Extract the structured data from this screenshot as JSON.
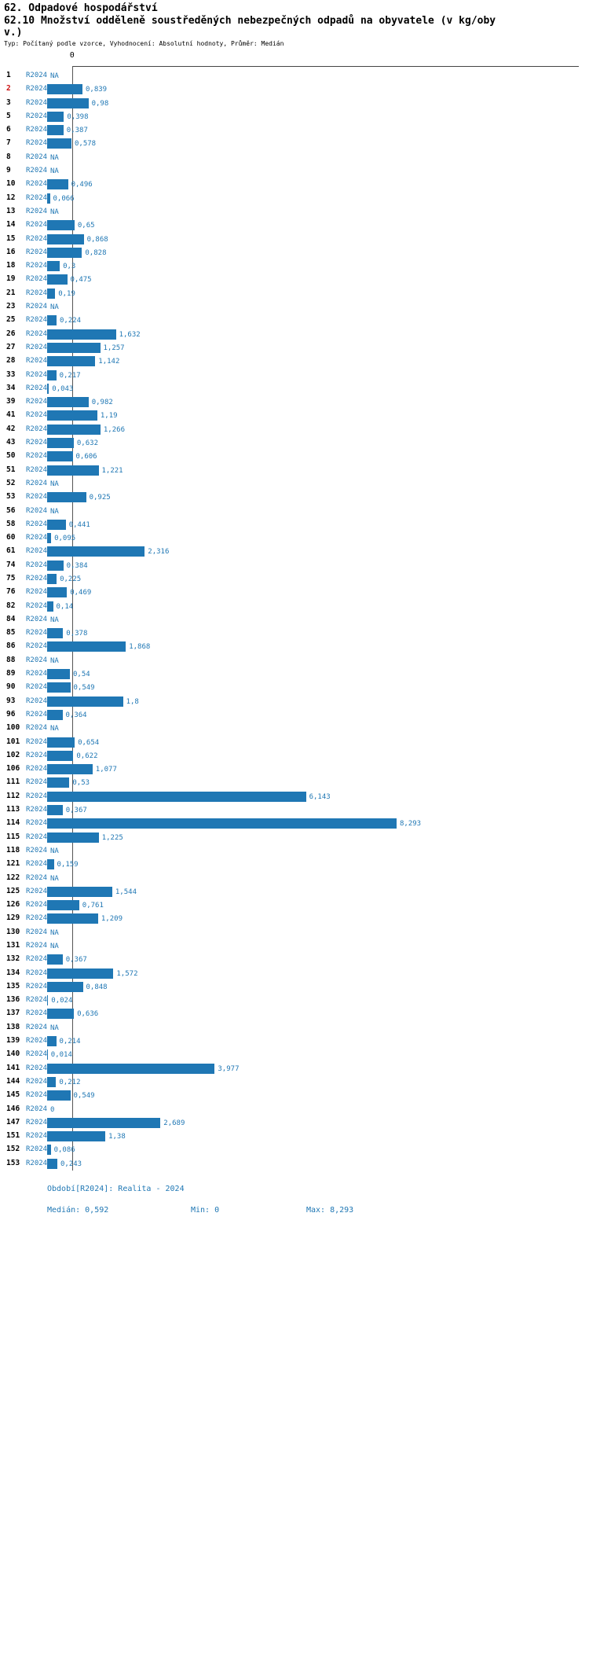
{
  "header": {
    "title": "62. Odpadové hospodářství",
    "subtitle": "62.10 Množství odděleně soustředěných nebezpečných odpadů na obyvatele (v kg/obyv.)",
    "meta": "Typ: Počítaný podle vzorce, Vyhodnocení: Absolutní hodnoty, Průměr: Medián"
  },
  "axis": {
    "zero_label": "0"
  },
  "footer": {
    "period": "Období[R2024]: Realita - 2024",
    "median": "Medián: 0,592",
    "min": "Min: 0",
    "max": "Max: 8,293"
  },
  "colors": {
    "bar_blue": "#1f77b4",
    "text_blue": "#1f77b4",
    "highlight_red": "#cc1111",
    "axis_gray": "#444444"
  },
  "chart_data": {
    "type": "bar",
    "orientation": "horizontal",
    "series_name": "R2024",
    "median": 0.592,
    "min": 0,
    "max": 8.293,
    "xlim": [
      0,
      8.5
    ],
    "highlighted_category": "2",
    "legend_position": "none",
    "grid": false,
    "rows": [
      {
        "n": "1",
        "v": null,
        "d": "NA"
      },
      {
        "n": "2",
        "v": 0.839,
        "d": "0,839",
        "hl": true
      },
      {
        "n": "3",
        "v": 0.98,
        "d": "0,98"
      },
      {
        "n": "5",
        "v": 0.398,
        "d": "0,398"
      },
      {
        "n": "6",
        "v": 0.387,
        "d": "0,387"
      },
      {
        "n": "7",
        "v": 0.578,
        "d": "0,578"
      },
      {
        "n": "8",
        "v": null,
        "d": "NA"
      },
      {
        "n": "9",
        "v": null,
        "d": "NA"
      },
      {
        "n": "10",
        "v": 0.496,
        "d": "0,496"
      },
      {
        "n": "12",
        "v": 0.066,
        "d": "0,066"
      },
      {
        "n": "13",
        "v": null,
        "d": "NA"
      },
      {
        "n": "14",
        "v": 0.65,
        "d": "0,65"
      },
      {
        "n": "15",
        "v": 0.868,
        "d": "0,868"
      },
      {
        "n": "16",
        "v": 0.828,
        "d": "0,828"
      },
      {
        "n": "18",
        "v": 0.3,
        "d": "0,3"
      },
      {
        "n": "19",
        "v": 0.475,
        "d": "0,475"
      },
      {
        "n": "21",
        "v": 0.19,
        "d": "0,19"
      },
      {
        "n": "23",
        "v": null,
        "d": "NA"
      },
      {
        "n": "25",
        "v": 0.224,
        "d": "0,224"
      },
      {
        "n": "26",
        "v": 1.632,
        "d": "1,632"
      },
      {
        "n": "27",
        "v": 1.257,
        "d": "1,257"
      },
      {
        "n": "28",
        "v": 1.142,
        "d": "1,142"
      },
      {
        "n": "33",
        "v": 0.217,
        "d": "0,217"
      },
      {
        "n": "34",
        "v": 0.043,
        "d": "0,043"
      },
      {
        "n": "39",
        "v": 0.982,
        "d": "0,982"
      },
      {
        "n": "41",
        "v": 1.19,
        "d": "1,19"
      },
      {
        "n": "42",
        "v": 1.266,
        "d": "1,266"
      },
      {
        "n": "43",
        "v": 0.632,
        "d": "0,632"
      },
      {
        "n": "50",
        "v": 0.606,
        "d": "0,606"
      },
      {
        "n": "51",
        "v": 1.221,
        "d": "1,221"
      },
      {
        "n": "52",
        "v": null,
        "d": "NA"
      },
      {
        "n": "53",
        "v": 0.925,
        "d": "0,925"
      },
      {
        "n": "56",
        "v": null,
        "d": "NA"
      },
      {
        "n": "58",
        "v": 0.441,
        "d": "0,441"
      },
      {
        "n": "60",
        "v": 0.095,
        "d": "0,095"
      },
      {
        "n": "61",
        "v": 2.316,
        "d": "2,316"
      },
      {
        "n": "74",
        "v": 0.384,
        "d": "0,384"
      },
      {
        "n": "75",
        "v": 0.225,
        "d": "0,225"
      },
      {
        "n": "76",
        "v": 0.469,
        "d": "0,469"
      },
      {
        "n": "82",
        "v": 0.14,
        "d": "0,14"
      },
      {
        "n": "84",
        "v": null,
        "d": "NA"
      },
      {
        "n": "85",
        "v": 0.378,
        "d": "0,378"
      },
      {
        "n": "86",
        "v": 1.868,
        "d": "1,868"
      },
      {
        "n": "88",
        "v": null,
        "d": "NA"
      },
      {
        "n": "89",
        "v": 0.54,
        "d": "0,54"
      },
      {
        "n": "90",
        "v": 0.549,
        "d": "0,549"
      },
      {
        "n": "93",
        "v": 1.8,
        "d": "1,8"
      },
      {
        "n": "96",
        "v": 0.364,
        "d": "0,364"
      },
      {
        "n": "100",
        "v": null,
        "d": "NA"
      },
      {
        "n": "101",
        "v": 0.654,
        "d": "0,654"
      },
      {
        "n": "102",
        "v": 0.622,
        "d": "0,622"
      },
      {
        "n": "106",
        "v": 1.077,
        "d": "1,077"
      },
      {
        "n": "111",
        "v": 0.53,
        "d": "0,53"
      },
      {
        "n": "112",
        "v": 6.143,
        "d": "6,143"
      },
      {
        "n": "113",
        "v": 0.367,
        "d": "0,367"
      },
      {
        "n": "114",
        "v": 8.293,
        "d": "8,293"
      },
      {
        "n": "115",
        "v": 1.225,
        "d": "1,225"
      },
      {
        "n": "118",
        "v": null,
        "d": "NA"
      },
      {
        "n": "121",
        "v": 0.159,
        "d": "0,159"
      },
      {
        "n": "122",
        "v": null,
        "d": "NA"
      },
      {
        "n": "125",
        "v": 1.544,
        "d": "1,544"
      },
      {
        "n": "126",
        "v": 0.761,
        "d": "0,761"
      },
      {
        "n": "129",
        "v": 1.209,
        "d": "1,209"
      },
      {
        "n": "130",
        "v": null,
        "d": "NA"
      },
      {
        "n": "131",
        "v": null,
        "d": "NA"
      },
      {
        "n": "132",
        "v": 0.367,
        "d": "0,367"
      },
      {
        "n": "134",
        "v": 1.572,
        "d": "1,572"
      },
      {
        "n": "135",
        "v": 0.848,
        "d": "0,848"
      },
      {
        "n": "136",
        "v": 0.024,
        "d": "0,024"
      },
      {
        "n": "137",
        "v": 0.636,
        "d": "0,636"
      },
      {
        "n": "138",
        "v": null,
        "d": "NA"
      },
      {
        "n": "139",
        "v": 0.214,
        "d": "0,214"
      },
      {
        "n": "140",
        "v": 0.014,
        "d": "0,014"
      },
      {
        "n": "141",
        "v": 3.977,
        "d": "3,977"
      },
      {
        "n": "144",
        "v": 0.212,
        "d": "0,212"
      },
      {
        "n": "145",
        "v": 0.549,
        "d": "0,549"
      },
      {
        "n": "146",
        "v": 0,
        "d": "0"
      },
      {
        "n": "147",
        "v": 2.689,
        "d": "2,689"
      },
      {
        "n": "151",
        "v": 1.38,
        "d": "1,38"
      },
      {
        "n": "152",
        "v": 0.086,
        "d": "0,086"
      },
      {
        "n": "153",
        "v": 0.243,
        "d": "0,243"
      }
    ]
  }
}
